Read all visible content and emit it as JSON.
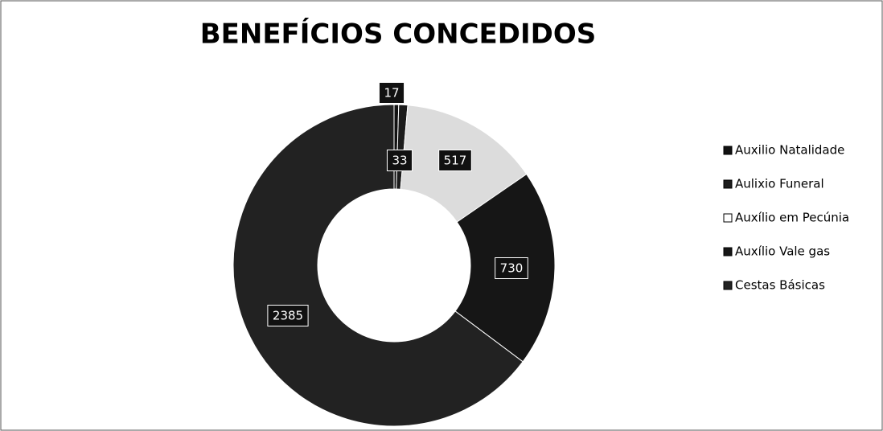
{
  "chart_data": {
    "type": "donut",
    "title": "BENEFÍCIOS CONCEDIDOS",
    "series": [
      {
        "name": "Auxilio Natalidade",
        "color": "#111111",
        "values": [
          17
        ]
      },
      {
        "name": "Aulixio Funeral",
        "color": "#1c1c1c",
        "values": [
          33
        ]
      },
      {
        "name": "Auxílio em Pecúnia",
        "color": "#dcdcdc",
        "values": [
          517
        ]
      },
      {
        "name": "Auxílio Vale gas",
        "color": "#161616",
        "values": [
          730
        ]
      },
      {
        "name": "Cestas Básicas",
        "color": "#222222",
        "values": [
          2385
        ]
      }
    ],
    "legend": "right"
  }
}
